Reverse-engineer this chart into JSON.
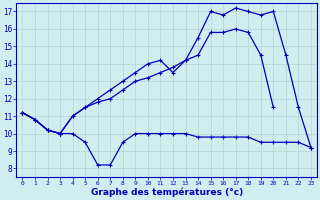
{
  "title": "Graphe des températures (°c)",
  "background_color": "#d0eef0",
  "grid_color": "#b0d8d0",
  "line_color": "#0000bb",
  "xlim": [
    -0.5,
    23.5
  ],
  "ylim": [
    7.5,
    17.5
  ],
  "yticks": [
    8,
    9,
    10,
    11,
    12,
    13,
    14,
    15,
    16,
    17
  ],
  "xticks": [
    0,
    1,
    2,
    3,
    4,
    5,
    6,
    7,
    8,
    9,
    10,
    11,
    12,
    13,
    14,
    15,
    16,
    17,
    18,
    19,
    20,
    21,
    22,
    23
  ],
  "hours": [
    0,
    1,
    2,
    3,
    4,
    5,
    6,
    7,
    8,
    9,
    10,
    11,
    12,
    13,
    14,
    15,
    16,
    17,
    18,
    19,
    20,
    21,
    22,
    23
  ],
  "line1": [
    11.2,
    10.8,
    10.2,
    10.0,
    10.0,
    9.5,
    8.2,
    8.2,
    9.5,
    10.0,
    10.0,
    10.0,
    10.0,
    10.0,
    9.8,
    9.8,
    9.8,
    9.8,
    9.8,
    9.5,
    9.5,
    9.5,
    9.5,
    9.2
  ],
  "line2": [
    11.2,
    10.8,
    10.2,
    10.0,
    11.0,
    11.5,
    11.8,
    12.0,
    12.5,
    13.0,
    13.2,
    13.5,
    13.8,
    14.2,
    14.5,
    15.8,
    15.8,
    16.0,
    15.8,
    14.5,
    11.5,
    null,
    null,
    null
  ],
  "line3": [
    11.2,
    10.8,
    10.2,
    10.0,
    11.0,
    11.5,
    12.0,
    12.5,
    13.0,
    13.5,
    14.0,
    14.2,
    13.5,
    14.2,
    15.5,
    17.0,
    16.8,
    17.2,
    17.0,
    16.8,
    17.0,
    14.5,
    11.5,
    9.2
  ]
}
